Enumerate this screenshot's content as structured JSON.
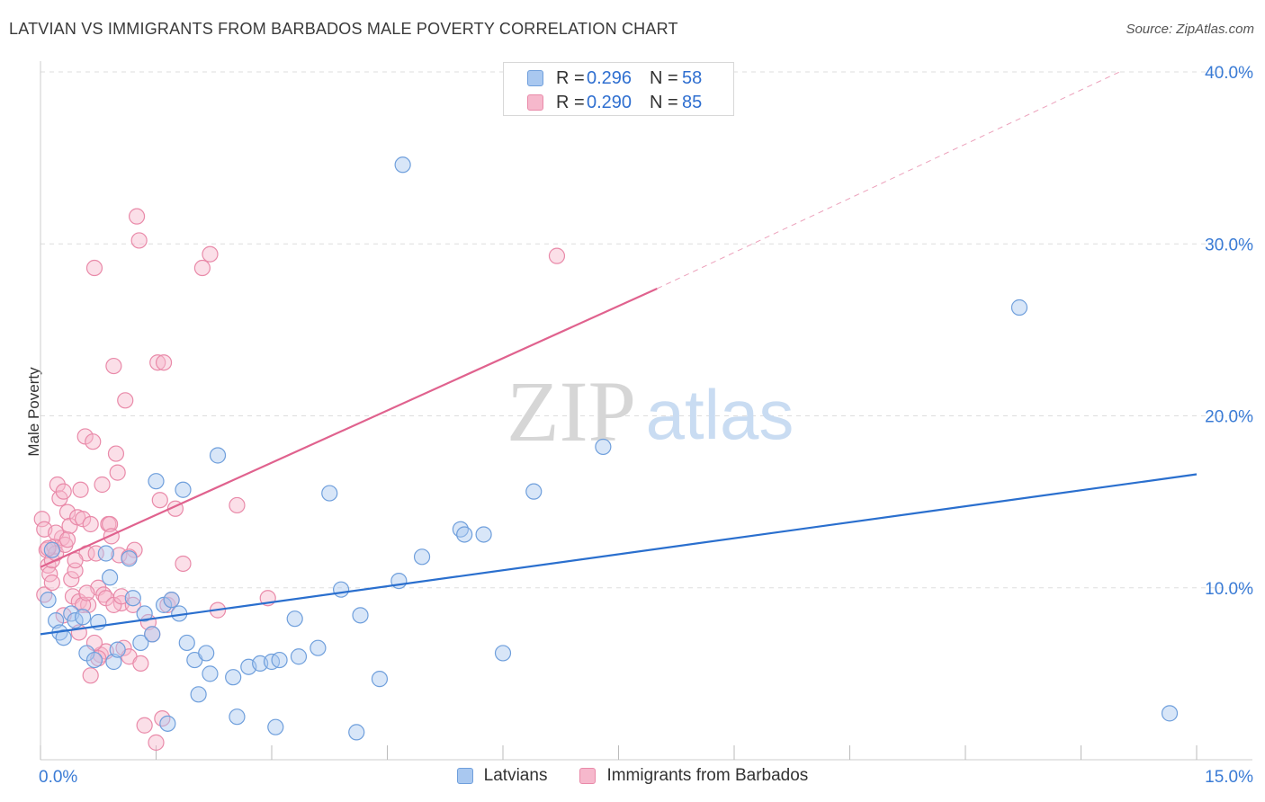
{
  "header": {
    "title": "LATVIAN VS IMMIGRANTS FROM BARBADOS MALE POVERTY CORRELATION CHART",
    "source": "Source: ZipAtlas.com"
  },
  "watermark": {
    "zip": "ZIP",
    "atlas": "atlas"
  },
  "legend": {
    "rows": [
      {
        "r_label": "R =",
        "r_value": "0.296",
        "n_label": "N =",
        "n_value": "58"
      },
      {
        "r_label": "R =",
        "r_value": "0.290",
        "n_label": "N =",
        "n_value": "85"
      }
    ]
  },
  "bottom_legend": {
    "series1": "Latvians",
    "series2": "Immigrants from Barbados"
  },
  "colors": {
    "latvian_fill": "#a9c8f0",
    "latvian_stroke": "#6f9fdc",
    "latvian_line": "#2a6fce",
    "barbados_fill": "#f6b8cc",
    "barbados_stroke": "#e98aa9",
    "barbados_line": "#e0628e",
    "axis_text": "#3a7bd5",
    "grid": "#dddddd"
  },
  "chart_data": {
    "type": "scatter",
    "title": "LATVIAN VS IMMIGRANTS FROM BARBADOS MALE POVERTY CORRELATION CHART",
    "xlabel": "",
    "ylabel": "Male Poverty",
    "xlim": [
      0,
      15
    ],
    "ylim": [
      0,
      40
    ],
    "x_tick_labels": [
      "0.0%",
      "15.0%"
    ],
    "y_ticks": [
      10,
      20,
      30,
      40
    ],
    "y_tick_labels": [
      "10.0%",
      "20.0%",
      "30.0%",
      "40.0%"
    ],
    "series": [
      {
        "name": "Latvians",
        "r": 0.296,
        "n": 58,
        "trend": {
          "x": [
            0,
            15
          ],
          "y": [
            7.3,
            16.6
          ]
        },
        "points": [
          [
            0.1,
            9.3
          ],
          [
            0.2,
            8.1
          ],
          [
            0.25,
            7.4
          ],
          [
            0.3,
            7.1
          ],
          [
            0.4,
            8.5
          ],
          [
            0.45,
            8.1
          ],
          [
            0.55,
            8.3
          ],
          [
            0.6,
            6.2
          ],
          [
            0.7,
            5.8
          ],
          [
            0.75,
            8.0
          ],
          [
            0.85,
            12.0
          ],
          [
            0.9,
            10.6
          ],
          [
            0.95,
            5.7
          ],
          [
            1.0,
            6.4
          ],
          [
            1.15,
            11.7
          ],
          [
            1.2,
            9.4
          ],
          [
            1.3,
            6.8
          ],
          [
            1.35,
            8.5
          ],
          [
            1.45,
            7.3
          ],
          [
            1.5,
            16.2
          ],
          [
            1.6,
            9.0
          ],
          [
            1.65,
            2.1
          ],
          [
            1.7,
            9.3
          ],
          [
            1.8,
            8.5
          ],
          [
            1.85,
            15.7
          ],
          [
            1.9,
            6.8
          ],
          [
            2.0,
            5.8
          ],
          [
            2.05,
            3.8
          ],
          [
            2.15,
            6.2
          ],
          [
            2.2,
            5.0
          ],
          [
            2.3,
            17.7
          ],
          [
            2.5,
            4.8
          ],
          [
            2.55,
            2.5
          ],
          [
            2.7,
            5.4
          ],
          [
            2.85,
            5.6
          ],
          [
            3.0,
            5.7
          ],
          [
            3.05,
            1.9
          ],
          [
            3.1,
            5.8
          ],
          [
            3.3,
            8.2
          ],
          [
            3.35,
            6.0
          ],
          [
            3.6,
            6.5
          ],
          [
            3.75,
            15.5
          ],
          [
            3.9,
            9.9
          ],
          [
            4.1,
            1.6
          ],
          [
            4.15,
            8.4
          ],
          [
            4.4,
            4.7
          ],
          [
            4.65,
            10.4
          ],
          [
            4.7,
            34.6
          ],
          [
            4.95,
            11.8
          ],
          [
            5.45,
            13.4
          ],
          [
            5.5,
            13.1
          ],
          [
            5.75,
            13.1
          ],
          [
            6.0,
            6.2
          ],
          [
            6.4,
            15.6
          ],
          [
            7.3,
            18.2
          ],
          [
            12.7,
            26.3
          ],
          [
            14.65,
            2.7
          ],
          [
            0.15,
            12.2
          ]
        ]
      },
      {
        "name": "Immigrants from Barbados",
        "r": 0.29,
        "n": 85,
        "trend": {
          "x": [
            0,
            8.0
          ],
          "y": [
            11.2,
            27.4
          ]
        },
        "trend_dashed": {
          "x": [
            8.0,
            14.0
          ],
          "y": [
            27.4,
            40.0
          ]
        },
        "points": [
          [
            0.02,
            14.0
          ],
          [
            0.05,
            13.4
          ],
          [
            0.08,
            12.2
          ],
          [
            0.1,
            11.3
          ],
          [
            0.12,
            10.8
          ],
          [
            0.15,
            11.6
          ],
          [
            0.18,
            12.4
          ],
          [
            0.2,
            12.0
          ],
          [
            0.22,
            16.0
          ],
          [
            0.25,
            15.2
          ],
          [
            0.28,
            12.9
          ],
          [
            0.3,
            15.6
          ],
          [
            0.32,
            12.5
          ],
          [
            0.35,
            14.4
          ],
          [
            0.38,
            13.6
          ],
          [
            0.4,
            10.5
          ],
          [
            0.42,
            9.5
          ],
          [
            0.45,
            11.0
          ],
          [
            0.48,
            14.1
          ],
          [
            0.5,
            9.2
          ],
          [
            0.52,
            15.7
          ],
          [
            0.55,
            14.0
          ],
          [
            0.58,
            18.8
          ],
          [
            0.6,
            12.0
          ],
          [
            0.62,
            9.0
          ],
          [
            0.65,
            13.7
          ],
          [
            0.68,
            18.5
          ],
          [
            0.7,
            28.6
          ],
          [
            0.72,
            12.0
          ],
          [
            0.75,
            10.0
          ],
          [
            0.78,
            6.1
          ],
          [
            0.8,
            16.0
          ],
          [
            0.82,
            9.6
          ],
          [
            0.85,
            6.3
          ],
          [
            0.88,
            13.7
          ],
          [
            0.9,
            13.7
          ],
          [
            0.92,
            13.0
          ],
          [
            0.95,
            22.9
          ],
          [
            0.98,
            17.8
          ],
          [
            1.0,
            16.7
          ],
          [
            1.02,
            11.9
          ],
          [
            1.05,
            9.1
          ],
          [
            1.08,
            6.5
          ],
          [
            1.1,
            20.9
          ],
          [
            1.15,
            6.0
          ],
          [
            1.2,
            9.0
          ],
          [
            1.22,
            12.2
          ],
          [
            1.25,
            31.6
          ],
          [
            1.28,
            30.2
          ],
          [
            1.3,
            5.6
          ],
          [
            1.35,
            2.0
          ],
          [
            1.4,
            8.0
          ],
          [
            1.45,
            7.3
          ],
          [
            1.5,
            1.0
          ],
          [
            1.52,
            23.1
          ],
          [
            1.55,
            15.1
          ],
          [
            1.58,
            2.4
          ],
          [
            1.6,
            23.1
          ],
          [
            1.65,
            9.0
          ],
          [
            1.7,
            9.3
          ],
          [
            1.75,
            14.6
          ],
          [
            1.85,
            11.4
          ],
          [
            2.1,
            28.6
          ],
          [
            2.2,
            29.4
          ],
          [
            2.3,
            8.7
          ],
          [
            2.55,
            14.8
          ],
          [
            2.95,
            9.4
          ],
          [
            0.05,
            9.6
          ],
          [
            0.1,
            12.3
          ],
          [
            0.15,
            10.3
          ],
          [
            0.2,
            13.2
          ],
          [
            0.3,
            8.4
          ],
          [
            0.35,
            12.8
          ],
          [
            0.45,
            11.6
          ],
          [
            0.5,
            7.4
          ],
          [
            0.55,
            9.0
          ],
          [
            0.6,
            9.7
          ],
          [
            0.65,
            4.9
          ],
          [
            0.7,
            6.8
          ],
          [
            0.75,
            5.9
          ],
          [
            0.85,
            9.4
          ],
          [
            0.95,
            9.0
          ],
          [
            1.05,
            9.5
          ],
          [
            1.15,
            11.8
          ],
          [
            6.7,
            29.3
          ]
        ]
      }
    ]
  }
}
